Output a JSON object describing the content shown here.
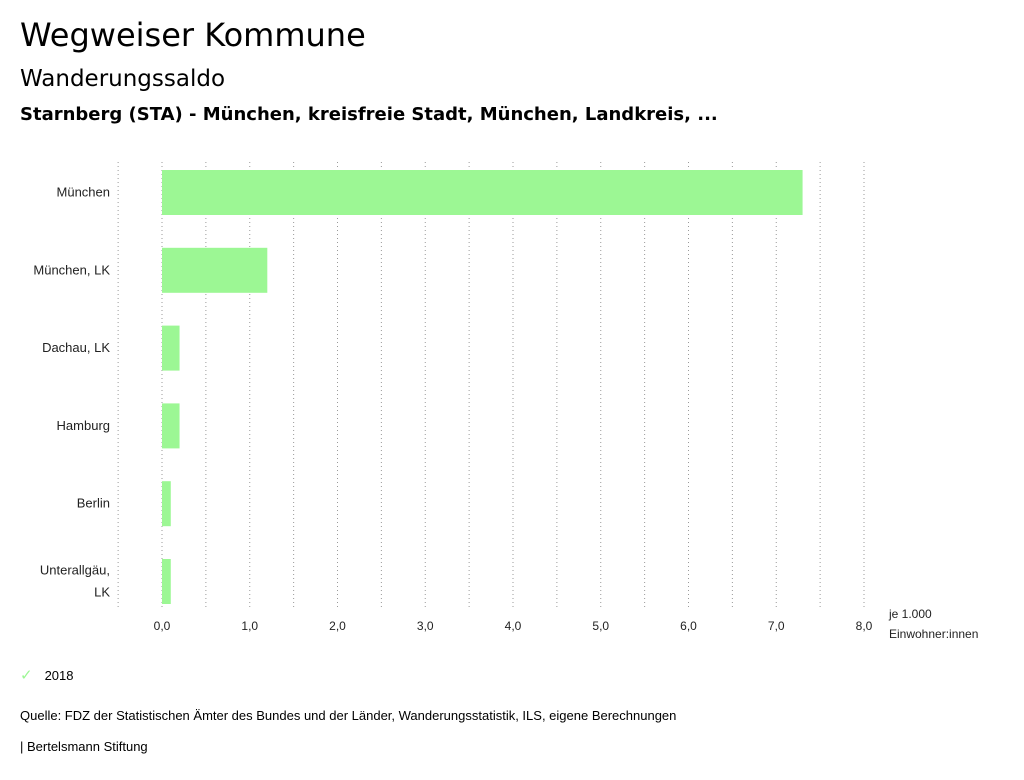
{
  "header": {
    "title": "Wegweiser Kommune",
    "subtitle": "Wanderungssaldo",
    "region": "Starnberg (STA) - München, kreisfreie Stadt, München, Landkreis, ..."
  },
  "chart_data": {
    "type": "bar",
    "orientation": "horizontal",
    "categories": [
      [
        "München"
      ],
      [
        "München, LK"
      ],
      [
        "Dachau, LK"
      ],
      [
        "Hamburg"
      ],
      [
        "Berlin"
      ],
      [
        "Unterallgäu,",
        "LK"
      ]
    ],
    "series": [
      {
        "name": "2018",
        "values": [
          7.3,
          1.2,
          0.2,
          0.2,
          0.1,
          0.1
        ],
        "color": "#9cf794"
      }
    ],
    "xlim": [
      -0.5,
      8.0
    ],
    "ticks": [
      0,
      1,
      2,
      3,
      4,
      5,
      6,
      7,
      8
    ],
    "tick_labels": [
      "0,0",
      "1,0",
      "2,0",
      "3,0",
      "4,0",
      "5,0",
      "6,0",
      "7,0",
      "8,0"
    ],
    "unit_label": [
      "je 1.000",
      "Einwohner:innen"
    ],
    "grid": true
  },
  "legend": {
    "label": "2018",
    "icon": "check-icon"
  },
  "footer": {
    "source": "Quelle: FDZ der Statistischen Ämter des Bundes und der Länder, Wanderungsstatistik, ILS, eigene Berechnungen",
    "brand": "| Bertelsmann Stiftung"
  }
}
